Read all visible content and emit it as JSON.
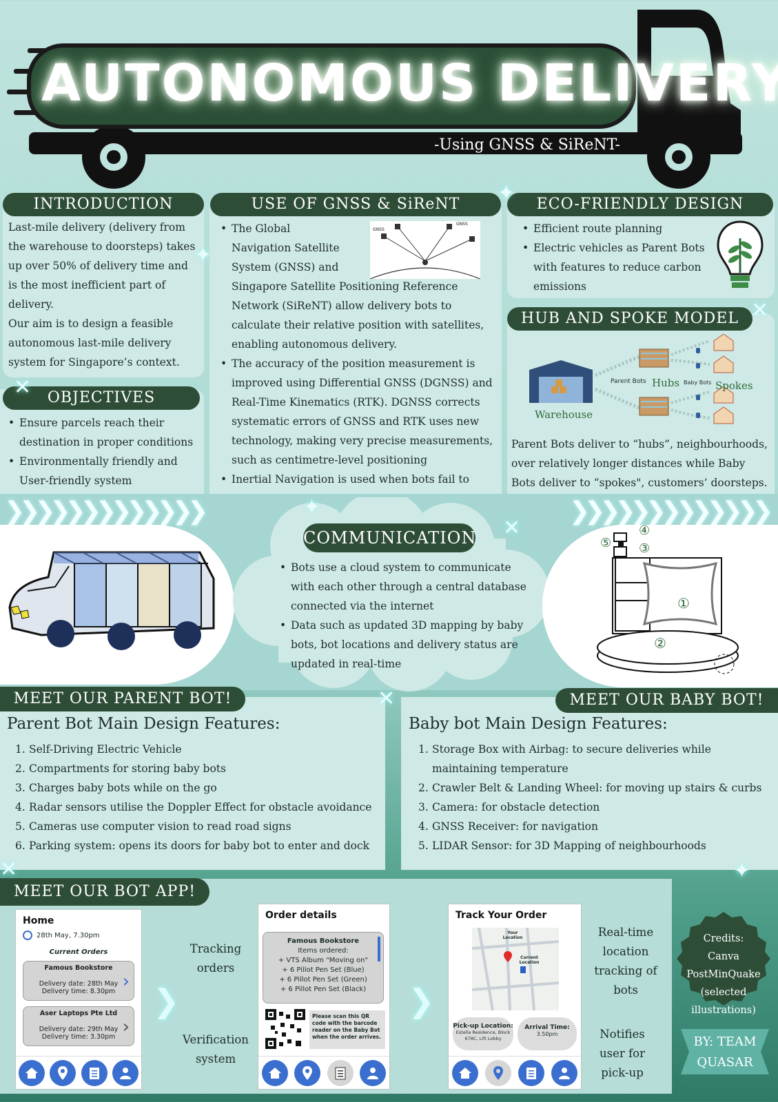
{
  "title": {
    "main": "AUTONOMOUS DELIVERY",
    "subtitle": "-Using GNSS & SiReNT-"
  },
  "introduction": {
    "heading": "INTRODUCTION",
    "paragraphs": [
      "Last-mile delivery (delivery from the warehouse to doorsteps) takes up over 50% of delivery time and is the most inefficient part of delivery.",
      "Our aim is to design a feasible autonomous last-mile delivery system for Singapore’s context."
    ]
  },
  "objectives": {
    "heading": "OBJECTIVES",
    "items": [
      "Ensure parcels reach their destination in proper conditions",
      "Environmentally friendly and User-friendly system"
    ]
  },
  "gnss": {
    "heading": "USE OF GNSS & SiReNT",
    "items": [
      "The Global Navigation Satellite System (GNSS) and Singapore Satellite Positioning Reference Network (SiReNT) allow delivery bots to calculate their relative position with satellites, enabling autonomous delivery.",
      "The accuracy of the position measurement is improved using Differential GNSS (DGNSS) and Real-Time Kinematics (RTK). DGNSS corrects systematic errors of GNSS and RTK uses new technology, making very precise measurements, such as centimetre-level positioning",
      "Inertial Navigation is used when bots fail to receive any GNSS Signal"
    ],
    "satellite_label": "GNSS"
  },
  "eco": {
    "heading": "ECO-FRIENDLY DESIGN",
    "items": [
      "Efficient route planning",
      "Electric vehicles as Parent Bots with features to reduce carbon emissions"
    ]
  },
  "hub": {
    "heading": "HUB AND SPOKE MODEL",
    "labels": {
      "warehouse": "Warehouse",
      "parent_bots": "Parent Bots",
      "hubs": "Hubs",
      "baby_bots": "Baby Bots",
      "spokes": "Spokes"
    },
    "description": "Parent Bots deliver to “hubs”, neighbourhoods, over relatively longer distances while Baby Bots deliver to “spokes\", customers’ doorsteps."
  },
  "communication": {
    "heading": "COMMUNICATION",
    "items": [
      "Bots use a cloud system to communicate with each other through a central database connected via the internet",
      "Data such as updated 3D mapping by baby bots, bot locations and delivery status are updated in real-time"
    ],
    "babybot_callouts": [
      "①",
      "②",
      "③",
      "④",
      "⑤"
    ]
  },
  "parent_bot": {
    "heading": "MEET OUR PARENT BOT!",
    "subheading": "Parent Bot Main Design Features:",
    "items": [
      "Self-Driving Electric Vehicle",
      "Compartments for storing baby bots",
      "Charges baby bots while on the go",
      "Radar sensors utilise the Doppler Effect for obstacle avoidance",
      "Cameras use computer vision to read road signs",
      "Parking system: opens its doors for baby bot to enter and dock"
    ]
  },
  "baby_bot": {
    "heading": "MEET OUR BABY BOT!",
    "subheading": "Baby bot Main Design Features:",
    "items": [
      "Storage Box with Airbag: to secure deliveries while maintaining temperature",
      "Crawler Belt & Landing Wheel: for moving up stairs & curbs",
      "Camera: for obstacle detection",
      "GNSS Receiver: for navigation",
      "LIDAR Sensor: for 3D Mapping of neighbourhoods"
    ]
  },
  "app": {
    "heading": "MEET OUR BOT APP!",
    "home": {
      "title": "Home",
      "datetime": "28th May, 7.30pm",
      "current_orders": "Current Orders",
      "orders": [
        {
          "store": "Famous Bookstore",
          "date": "Delivery date: 28th May",
          "time": "Delivery time: 8.30pm"
        },
        {
          "store": "Aser Laptops Pte Ltd",
          "date": "Delivery date: 29th May",
          "time": "Delivery time: 3.30pm"
        }
      ]
    },
    "order_details": {
      "title": "Order details",
      "store": "Famous Bookstore",
      "items_label": "Items ordered:",
      "items": [
        "+ VTS Album \"Moving on\"",
        "+ 6 Pillot Pen Set (Blue)",
        "+ 6 Pillot Pen Set (Green)",
        "+ 6 Pillot Pen Set (Black)"
      ],
      "qr_note": "Please scan this QR code with the barcode reader on the Baby Bot when the order arrives."
    },
    "track": {
      "title": "Track Your Order",
      "map_labels": {
        "your_location": "Your Location",
        "current_location": "Current Location"
      },
      "pickup_label": "Pick-up Location:",
      "pickup_value": "Estella Residence, Block 678C, Lift Lobby",
      "arrival_label": "Arrival Time:",
      "arrival_value": "3.50pm"
    },
    "side_labels": {
      "tracking": "Tracking orders",
      "verification": "Verification system",
      "realtime": "Real-time location tracking of bots",
      "notifies": "Notifies user for pick-up"
    }
  },
  "credits": "Credits: Canva PostMinQuake (selected illustrations)",
  "team": "BY: TEAM QUASAR",
  "colors": {
    "header_green": "#2e4d37",
    "panel": "#cfe9e6",
    "background_top": "#bfe3de",
    "background_bottom": "#2f7a66",
    "icon_blue": "#3a6fcf"
  }
}
